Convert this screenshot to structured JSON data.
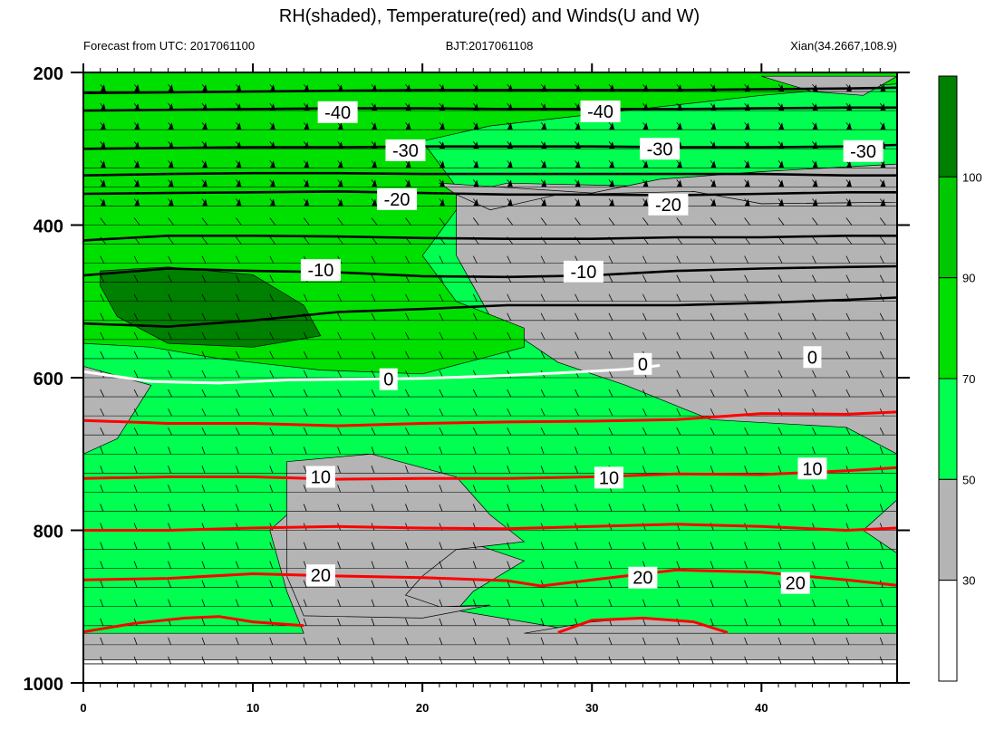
{
  "chart_data": {
    "type": "area",
    "title": "RH(shaded), Temperature(red) and Winds(U and W)",
    "subtitle_left": "Forecast from UTC: 2017061100",
    "subtitle_center": "BJT:2017061108",
    "subtitle_right": "Xian(34.2667,108.9)",
    "xlim": [
      0,
      48
    ],
    "ylim": [
      200,
      1000
    ],
    "y_reversed": true,
    "x_ticks": [
      "0",
      "10",
      "20",
      "30",
      "40"
    ],
    "y_ticks": [
      "200",
      "400",
      "600",
      "800",
      "1000"
    ],
    "x_tick_values": [
      0,
      10,
      20,
      30,
      40
    ],
    "y_tick_values": [
      200,
      400,
      600,
      800,
      1000
    ],
    "levels": [
      200,
      225,
      250,
      275,
      300,
      325,
      350,
      375,
      400,
      425,
      450,
      475,
      500,
      525,
      550,
      575,
      600,
      625,
      650,
      675,
      700,
      725,
      750,
      775,
      800,
      825,
      850,
      875,
      900,
      925,
      950,
      975
    ],
    "colorbar": {
      "ticks": [
        "30",
        "50",
        "70",
        "90",
        "100"
      ],
      "bands": [
        {
          "min": 0,
          "max": 30,
          "color": "#ffffff"
        },
        {
          "min": 30,
          "max": 50,
          "color": "#b4b4b4"
        },
        {
          "min": 50,
          "max": 70,
          "color": "#00ff50"
        },
        {
          "min": 70,
          "max": 90,
          "color": "#00e000"
        },
        {
          "min": 90,
          "max": 100,
          "color": "#00c800"
        },
        {
          "min": 100,
          "max": 110,
          "color": "#008000"
        }
      ]
    },
    "temperature_contours": [
      {
        "value": 20,
        "points": [
          [
            0,
            865
          ],
          [
            5,
            863
          ],
          [
            10,
            857
          ],
          [
            15,
            860
          ],
          [
            20,
            862
          ],
          [
            25,
            866
          ],
          [
            27,
            873
          ],
          [
            30,
            865
          ],
          [
            35,
            852
          ],
          [
            40,
            855
          ],
          [
            45,
            865
          ],
          [
            48,
            872
          ]
        ]
      },
      {
        "value": 10,
        "points": [
          [
            0,
            800
          ],
          [
            5,
            800
          ],
          [
            10,
            797
          ],
          [
            15,
            795
          ],
          [
            20,
            797
          ],
          [
            25,
            798
          ],
          [
            30,
            795
          ],
          [
            35,
            792
          ],
          [
            40,
            795
          ],
          [
            45,
            800
          ],
          [
            48,
            797
          ]
        ]
      },
      {
        "value": 10,
        "points": [
          [
            0,
            732
          ],
          [
            5,
            730
          ],
          [
            10,
            730
          ],
          [
            15,
            733
          ],
          [
            20,
            732
          ],
          [
            25,
            732
          ],
          [
            30,
            730
          ],
          [
            35,
            726
          ],
          [
            40,
            727
          ],
          [
            45,
            722
          ],
          [
            48,
            718
          ]
        ]
      },
      {
        "value": 10,
        "points": [
          [
            0,
            656
          ],
          [
            5,
            660
          ],
          [
            10,
            660
          ],
          [
            15,
            663
          ],
          [
            20,
            660
          ],
          [
            25,
            658
          ],
          [
            30,
            657
          ],
          [
            35,
            655
          ],
          [
            40,
            647
          ],
          [
            45,
            648
          ],
          [
            48,
            645
          ]
        ]
      },
      {
        "value": 20,
        "points": [
          [
            0,
            933
          ],
          [
            3,
            922
          ],
          [
            6,
            915
          ],
          [
            8,
            913
          ],
          [
            10,
            920
          ],
          [
            13,
            925
          ]
        ]
      },
      {
        "value": 20,
        "points": [
          [
            28,
            934
          ],
          [
            30,
            918
          ],
          [
            33,
            915
          ],
          [
            36,
            920
          ],
          [
            38,
            934
          ]
        ]
      }
    ],
    "freezing_line": {
      "value": 0,
      "points": [
        [
          0,
          592
        ],
        [
          4,
          605
        ],
        [
          8,
          607
        ],
        [
          12,
          603
        ],
        [
          16,
          602
        ],
        [
          20,
          601
        ],
        [
          24,
          598
        ],
        [
          28,
          594
        ],
        [
          32,
          589
        ],
        [
          34,
          584
        ]
      ]
    },
    "cold_contours": [
      {
        "value": -10,
        "points": [
          [
            0,
            529
          ],
          [
            5,
            533
          ],
          [
            10,
            525
          ],
          [
            15,
            514
          ],
          [
            20,
            510
          ],
          [
            25,
            505
          ],
          [
            30,
            505
          ],
          [
            35,
            505
          ],
          [
            40,
            502
          ],
          [
            45,
            498
          ],
          [
            48,
            495
          ]
        ]
      },
      {
        "value": -10,
        "points": [
          [
            0,
            466
          ],
          [
            5,
            457
          ],
          [
            10,
            460
          ],
          [
            15,
            462
          ],
          [
            20,
            467
          ],
          [
            25,
            468
          ],
          [
            30,
            466
          ],
          [
            35,
            460
          ],
          [
            40,
            457
          ],
          [
            45,
            455
          ],
          [
            48,
            454
          ]
        ]
      },
      {
        "value": -20,
        "points": [
          [
            0,
            420
          ],
          [
            5,
            414
          ],
          [
            10,
            414
          ],
          [
            15,
            415
          ],
          [
            20,
            417
          ],
          [
            25,
            418
          ],
          [
            30,
            418
          ],
          [
            35,
            416
          ],
          [
            40,
            416
          ],
          [
            45,
            414
          ],
          [
            48,
            414
          ]
        ]
      },
      {
        "value": -20,
        "points": [
          [
            0,
            359
          ],
          [
            5,
            358
          ],
          [
            10,
            357
          ],
          [
            15,
            356
          ],
          [
            20,
            358
          ],
          [
            25,
            360
          ],
          [
            30,
            360
          ],
          [
            35,
            361
          ],
          [
            40,
            359
          ],
          [
            45,
            357
          ],
          [
            48,
            357
          ]
        ]
      },
      {
        "value": -30,
        "points": [
          [
            0,
            335
          ],
          [
            5,
            333
          ],
          [
            10,
            332
          ],
          [
            15,
            332
          ],
          [
            20,
            333
          ],
          [
            25,
            333
          ],
          [
            30,
            333
          ],
          [
            35,
            333
          ],
          [
            40,
            333
          ],
          [
            45,
            335
          ],
          [
            48,
            335
          ]
        ]
      },
      {
        "value": -30,
        "points": [
          [
            0,
            300
          ],
          [
            5,
            299
          ],
          [
            10,
            298
          ],
          [
            15,
            298
          ],
          [
            20,
            297
          ],
          [
            25,
            297
          ],
          [
            30,
            297
          ],
          [
            35,
            298
          ],
          [
            40,
            298
          ],
          [
            45,
            297
          ],
          [
            48,
            295
          ]
        ]
      },
      {
        "value": -40,
        "points": [
          [
            0,
            250
          ],
          [
            5,
            249
          ],
          [
            10,
            248
          ],
          [
            15,
            247
          ],
          [
            20,
            247
          ],
          [
            25,
            248
          ],
          [
            30,
            248
          ],
          [
            35,
            248
          ],
          [
            40,
            247
          ],
          [
            45,
            246
          ],
          [
            48,
            246
          ]
        ]
      },
      {
        "value": -40,
        "points": [
          [
            0,
            227
          ],
          [
            5,
            226
          ],
          [
            10,
            225
          ],
          [
            15,
            224
          ],
          [
            20,
            223
          ],
          [
            25,
            223
          ],
          [
            30,
            223
          ],
          [
            35,
            223
          ],
          [
            40,
            222
          ],
          [
            45,
            221
          ],
          [
            48,
            220
          ]
        ]
      }
    ],
    "contour_labels": [
      {
        "text": "-40",
        "x": 15,
        "y": 252
      },
      {
        "text": "-40",
        "x": 30.5,
        "y": 251
      },
      {
        "text": "-30",
        "x": 19,
        "y": 302
      },
      {
        "text": "-30",
        "x": 34,
        "y": 300
      },
      {
        "text": "-30",
        "x": 46,
        "y": 303
      },
      {
        "text": "-20",
        "x": 18.5,
        "y": 366
      },
      {
        "text": "-20",
        "x": 34.5,
        "y": 373
      },
      {
        "text": "-10",
        "x": 14,
        "y": 459
      },
      {
        "text": "-10",
        "x": 29.5,
        "y": 461
      },
      {
        "text": "0",
        "x": 18,
        "y": 602
      },
      {
        "text": "0",
        "x": 33,
        "y": 582
      },
      {
        "text": "0",
        "x": 43,
        "y": 573
      },
      {
        "text": "10",
        "x": 14,
        "y": 730
      },
      {
        "text": "10",
        "x": 31,
        "y": 731
      },
      {
        "text": "10",
        "x": 43,
        "y": 719
      },
      {
        "text": "20",
        "x": 14,
        "y": 859
      },
      {
        "text": "20",
        "x": 33,
        "y": 862
      },
      {
        "text": "20",
        "x": 42,
        "y": 869
      }
    ]
  }
}
